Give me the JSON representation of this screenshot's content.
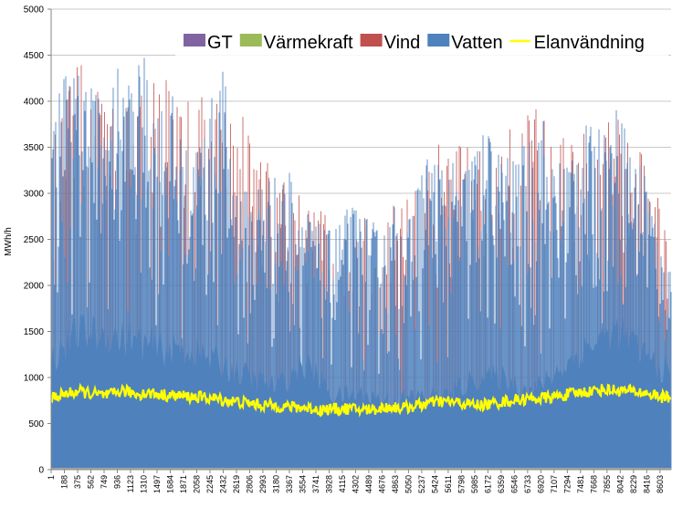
{
  "chart_data": {
    "type": "area",
    "title": "",
    "ylabel": "MWh/h",
    "xlabel": "",
    "ylim": [
      0,
      5000
    ],
    "yticks": [
      0,
      500,
      1000,
      1500,
      2000,
      2500,
      3000,
      3500,
      4000,
      4500,
      5000
    ],
    "x_range": [
      1,
      8760
    ],
    "x_tick_labels": [
      "1",
      "188",
      "375",
      "562",
      "749",
      "936",
      "1123",
      "1310",
      "1497",
      "1684",
      "1871",
      "2058",
      "2245",
      "2432",
      "2619",
      "2806",
      "2993",
      "3180",
      "3367",
      "3554",
      "3741",
      "3928",
      "4115",
      "4302",
      "4489",
      "4676",
      "4863",
      "5050",
      "5237",
      "5424",
      "5611",
      "5798",
      "5985",
      "6172",
      "6359",
      "6546",
      "6733",
      "6920",
      "7107",
      "7294",
      "7481",
      "7668",
      "7855",
      "8042",
      "8229",
      "8416",
      "8603"
    ],
    "grid": true,
    "legend_position": "top-right",
    "series": [
      {
        "name": "GT",
        "kind": "stacked-area",
        "color": "#8064a2",
        "envelope_x": [
          1,
          8760
        ],
        "envelope_y": [
          0,
          0
        ]
      },
      {
        "name": "Värmekraft",
        "kind": "stacked-area",
        "color": "#9bbb59",
        "envelope_x": [
          1,
          8760
        ],
        "envelope_y": [
          0,
          0
        ]
      },
      {
        "name": "Vind",
        "kind": "stacked-area",
        "color": "#c0504d",
        "envelope_x": [
          1,
          500,
          1000,
          1500,
          2000,
          2500,
          3000,
          3500,
          4000,
          4500,
          5000,
          5500,
          6000,
          6500,
          7000,
          7500,
          8000,
          8500,
          8760
        ],
        "envelope_y": [
          3800,
          4600,
          4100,
          4500,
          4000,
          4200,
          3400,
          3200,
          2700,
          2900,
          2900,
          3600,
          3500,
          3800,
          4100,
          3700,
          3900,
          3400,
          2300
        ]
      },
      {
        "name": "Vatten",
        "kind": "stacked-area",
        "color": "#4f81bd",
        "envelope_x": [
          1,
          187,
          374,
          561,
          748,
          935,
          1122,
          1309,
          1496,
          1683,
          1870,
          2057,
          2244,
          2431,
          2618,
          2805,
          2992,
          3179,
          3366,
          3553,
          3740,
          3927,
          4114,
          4301,
          4488,
          4675,
          4862,
          5049,
          5236,
          5423,
          5610,
          5797,
          5984,
          6171,
          6358,
          6545,
          6732,
          6919,
          7106,
          7293,
          7480,
          7667,
          7854,
          8041,
          8228,
          8415,
          8602,
          8760
        ],
        "envelope_y": [
          3800,
          4450,
          4350,
          4400,
          3900,
          4400,
          4300,
          4500,
          4000,
          4200,
          3500,
          3600,
          4000,
          4400,
          3200,
          3000,
          3300,
          3200,
          3300,
          2900,
          2700,
          2600,
          2800,
          2900,
          2750,
          2600,
          2900,
          2700,
          3400,
          3500,
          3350,
          3300,
          3600,
          3700,
          3500,
          3400,
          3600,
          4000,
          3300,
          3500,
          3800,
          3700,
          3800,
          4000,
          3400,
          3400,
          2400,
          2300
        ],
        "base_x": [
          1,
          400,
          800,
          1200,
          1600,
          2000,
          2400,
          2800,
          3200,
          3600,
          4000,
          4400,
          4800,
          5200,
          5600,
          6000,
          6400,
          6800,
          7200,
          7600,
          8000,
          8400,
          8760
        ],
        "base_y": [
          1200,
          1500,
          1450,
          1400,
          1300,
          1300,
          1150,
          1000,
          900,
          1150,
          800,
          820,
          750,
          800,
          800,
          1000,
          1000,
          850,
          1100,
          1350,
          1500,
          1250,
          1000
        ]
      },
      {
        "name": "Elanvändning",
        "kind": "line",
        "color": "#ffff00",
        "x": [
          1,
          200,
          400,
          600,
          800,
          1000,
          1200,
          1400,
          1600,
          1800,
          2000,
          2200,
          2400,
          2600,
          2800,
          3000,
          3200,
          3400,
          3600,
          3800,
          4000,
          4200,
          4400,
          4600,
          4800,
          5000,
          5200,
          5400,
          5600,
          5800,
          6000,
          6200,
          6400,
          6600,
          6800,
          7000,
          7200,
          7400,
          7600,
          7800,
          8000,
          8200,
          8400,
          8600,
          8760
        ],
        "y": [
          780,
          820,
          850,
          820,
          800,
          860,
          820,
          830,
          810,
          800,
          790,
          780,
          760,
          740,
          720,
          700,
          690,
          680,
          670,
          650,
          660,
          660,
          650,
          660,
          680,
          670,
          700,
          730,
          740,
          720,
          700,
          710,
          740,
          760,
          770,
          780,
          800,
          830,
          850,
          870,
          860,
          850,
          830,
          790,
          780
        ]
      }
    ]
  }
}
